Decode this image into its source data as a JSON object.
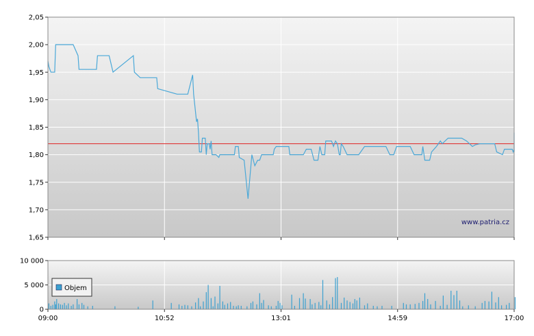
{
  "watermark": "www.patria.cz",
  "colors": {
    "price_line": "#4aa8d8",
    "reference_line": "#e02020",
    "volume_bar": "#3ba0d0",
    "gradient_top": "#f4f4f4",
    "gradient_bottom": "#c8c8c8",
    "grid": "#ffffff"
  },
  "chart_data": [
    {
      "type": "line",
      "x_ticks": [
        "09:00",
        "10:52",
        "13:01",
        "14:59",
        "17:00"
      ],
      "y_ticks": [
        "1,65",
        "1,70",
        "1,75",
        "1,80",
        "1,85",
        "1,90",
        "1,95",
        "2,00",
        "2,05"
      ],
      "ylim": [
        1.65,
        2.05
      ],
      "xlim_minutes": [
        0,
        480
      ],
      "reference_value": 1.82,
      "series": [
        {
          "points": [
            [
              0,
              1.97
            ],
            [
              1,
              1.96
            ],
            [
              3,
              1.95
            ],
            [
              7,
              1.95
            ],
            [
              8,
              2.0
            ],
            [
              26,
              2.0
            ],
            [
              31,
              1.98
            ],
            [
              32,
              1.955
            ],
            [
              50,
              1.955
            ],
            [
              51,
              1.98
            ],
            [
              63,
              1.98
            ],
            [
              67,
              1.95
            ],
            [
              88,
              1.98
            ],
            [
              89,
              1.95
            ],
            [
              95,
              1.94
            ],
            [
              112,
              1.94
            ],
            [
              113,
              1.92
            ],
            [
              133,
              1.91
            ],
            [
              144,
              1.91
            ],
            [
              149,
              1.945
            ],
            [
              150,
              1.91
            ],
            [
              153,
              1.86
            ],
            [
              154,
              1.865
            ],
            [
              155,
              1.84
            ],
            [
              156,
              1.805
            ],
            [
              158,
              1.805
            ],
            [
              159,
              1.83
            ],
            [
              162,
              1.83
            ],
            [
              163,
              1.8
            ],
            [
              164,
              1.82
            ],
            [
              166,
              1.82
            ],
            [
              167,
              1.81
            ],
            [
              168,
              1.825
            ],
            [
              169,
              1.8
            ],
            [
              173,
              1.8
            ],
            [
              176,
              1.795
            ],
            [
              177,
              1.8
            ],
            [
              192,
              1.8
            ],
            [
              193,
              1.815
            ],
            [
              196,
              1.815
            ],
            [
              197,
              1.795
            ],
            [
              202,
              1.79
            ],
            [
              206,
              1.72
            ],
            [
              209,
              1.78
            ],
            [
              210,
              1.8
            ],
            [
              213,
              1.78
            ],
            [
              216,
              1.79
            ],
            [
              218,
              1.79
            ],
            [
              220,
              1.8
            ],
            [
              232,
              1.8
            ],
            [
              233,
              1.81
            ],
            [
              235,
              1.815
            ],
            [
              248,
              1.815
            ],
            [
              249,
              1.8
            ],
            [
              263,
              1.8
            ],
            [
              266,
              1.81
            ],
            [
              271,
              1.81
            ],
            [
              274,
              1.79
            ],
            [
              278,
              1.79
            ],
            [
              280,
              1.815
            ],
            [
              282,
              1.8
            ],
            [
              285,
              1.8
            ],
            [
              286,
              1.825
            ],
            [
              292,
              1.825
            ],
            [
              294,
              1.815
            ],
            [
              296,
              1.825
            ],
            [
              298,
              1.82
            ],
            [
              300,
              1.8
            ],
            [
              301,
              1.8
            ],
            [
              302,
              1.82
            ],
            [
              304,
              1.815
            ],
            [
              308,
              1.8
            ],
            [
              314,
              1.8
            ],
            [
              320,
              1.8
            ],
            [
              326,
              1.815
            ],
            [
              348,
              1.815
            ],
            [
              352,
              1.8
            ],
            [
              356,
              1.8
            ],
            [
              359,
              1.815
            ],
            [
              373,
              1.815
            ],
            [
              377,
              1.8
            ],
            [
              385,
              1.8
            ],
            [
              386,
              1.815
            ],
            [
              388,
              1.79
            ],
            [
              393,
              1.79
            ],
            [
              395,
              1.805
            ],
            [
              400,
              1.815
            ],
            [
              404,
              1.825
            ],
            [
              406,
              1.82
            ],
            [
              412,
              1.83
            ],
            [
              426,
              1.83
            ],
            [
              431,
              1.825
            ],
            [
              437,
              1.815
            ],
            [
              440,
              1.818
            ],
            [
              445,
              1.82
            ],
            [
              460,
              1.82
            ],
            [
              462,
              1.805
            ],
            [
              468,
              1.8
            ],
            [
              470,
              1.81
            ],
            [
              478,
              1.81
            ],
            [
              479,
              1.805
            ],
            [
              481,
              1.81
            ],
            [
              482,
              1.805
            ],
            [
              484,
              1.82
            ],
            [
              485,
              1.805
            ],
            [
              487,
              1.82
            ],
            [
              488,
              1.84
            ],
            [
              489,
              1.82
            ],
            [
              494,
              1.82
            ]
          ]
        }
      ]
    },
    {
      "type": "bar",
      "legend": "Objem",
      "y_ticks": [
        "0",
        "5 000",
        "10 000"
      ],
      "ylim": [
        0,
        10000
      ],
      "bars": [
        [
          1,
          1200
        ],
        [
          3,
          700
        ],
        [
          5,
          900
        ],
        [
          7,
          1600
        ],
        [
          8,
          1000
        ],
        [
          9,
          2100
        ],
        [
          11,
          1200
        ],
        [
          13,
          1000
        ],
        [
          15,
          900
        ],
        [
          17,
          1300
        ],
        [
          19,
          800
        ],
        [
          21,
          1200
        ],
        [
          24,
          700
        ],
        [
          26,
          1000
        ],
        [
          30,
          2100
        ],
        [
          32,
          1000
        ],
        [
          35,
          1300
        ],
        [
          37,
          900
        ],
        [
          41,
          600
        ],
        [
          46,
          700
        ],
        [
          69,
          600
        ],
        [
          93,
          500
        ],
        [
          108,
          1800
        ],
        [
          127,
          1300
        ],
        [
          135,
          1000
        ],
        [
          138,
          700
        ],
        [
          141,
          900
        ],
        [
          144,
          800
        ],
        [
          148,
          600
        ],
        [
          152,
          1400
        ],
        [
          155,
          2300
        ],
        [
          157,
          600
        ],
        [
          160,
          1600
        ],
        [
          163,
          3500
        ],
        [
          165,
          5000
        ],
        [
          168,
          2300
        ],
        [
          170,
          600
        ],
        [
          172,
          2600
        ],
        [
          175,
          1200
        ],
        [
          177,
          4800
        ],
        [
          180,
          1600
        ],
        [
          182,
          900
        ],
        [
          185,
          1200
        ],
        [
          188,
          1500
        ],
        [
          191,
          700
        ],
        [
          194,
          600
        ],
        [
          196,
          800
        ],
        [
          199,
          700
        ],
        [
          205,
          600
        ],
        [
          209,
          1300
        ],
        [
          211,
          1600
        ],
        [
          215,
          1000
        ],
        [
          218,
          3300
        ],
        [
          220,
          1300
        ],
        [
          222,
          1900
        ],
        [
          227,
          800
        ],
        [
          230,
          600
        ],
        [
          235,
          700
        ],
        [
          237,
          1700
        ],
        [
          239,
          1300
        ],
        [
          241,
          800
        ],
        [
          251,
          3000
        ],
        [
          254,
          700
        ],
        [
          259,
          2300
        ],
        [
          263,
          3300
        ],
        [
          265,
          2200
        ],
        [
          270,
          2100
        ],
        [
          272,
          1000
        ],
        [
          275,
          1300
        ],
        [
          279,
          1500
        ],
        [
          281,
          800
        ],
        [
          283,
          6000
        ],
        [
          287,
          1800
        ],
        [
          290,
          1000
        ],
        [
          293,
          2500
        ],
        [
          296,
          6400
        ],
        [
          298,
          6600
        ],
        [
          302,
          1300
        ],
        [
          305,
          2400
        ],
        [
          308,
          1800
        ],
        [
          311,
          1500
        ],
        [
          314,
          1200
        ],
        [
          316,
          2100
        ],
        [
          318,
          1800
        ],
        [
          321,
          2400
        ],
        [
          326,
          800
        ],
        [
          329,
          1200
        ],
        [
          335,
          700
        ],
        [
          339,
          600
        ],
        [
          344,
          700
        ],
        [
          354,
          700
        ],
        [
          366,
          1300
        ],
        [
          369,
          1000
        ],
        [
          373,
          1000
        ],
        [
          378,
          1100
        ],
        [
          382,
          1300
        ],
        [
          386,
          1700
        ],
        [
          388,
          3300
        ],
        [
          391,
          2100
        ],
        [
          394,
          1000
        ],
        [
          399,
          1700
        ],
        [
          404,
          700
        ],
        [
          407,
          2800
        ],
        [
          411,
          900
        ],
        [
          415,
          3800
        ],
        [
          418,
          2900
        ],
        [
          421,
          3800
        ],
        [
          424,
          1800
        ],
        [
          427,
          600
        ],
        [
          433,
          800
        ],
        [
          440,
          600
        ],
        [
          447,
          1300
        ],
        [
          450,
          1700
        ],
        [
          454,
          1600
        ],
        [
          457,
          3600
        ],
        [
          461,
          1400
        ],
        [
          464,
          2500
        ],
        [
          467,
          800
        ],
        [
          472,
          900
        ],
        [
          475,
          1300
        ],
        [
          481,
          2500
        ]
      ]
    }
  ]
}
